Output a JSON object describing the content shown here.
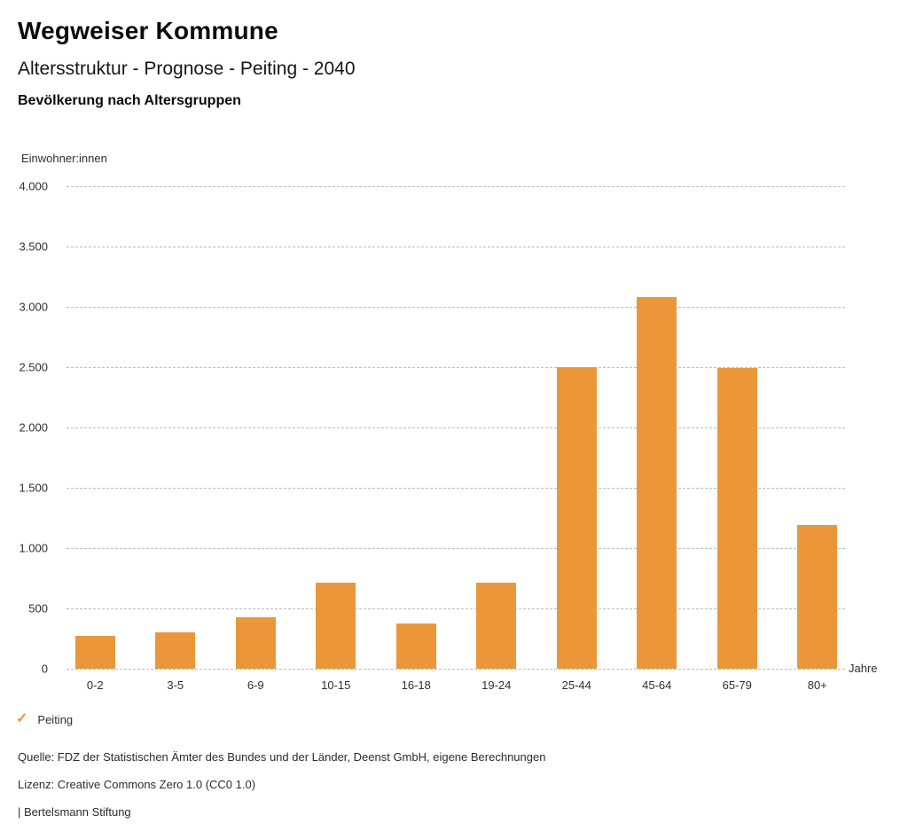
{
  "header": {
    "title": "Wegweiser Kommune",
    "subtitle": "Altersstruktur - Prognose - Peiting - 2040",
    "section_title": "Bevölkerung nach Altersgruppen"
  },
  "chart_data": {
    "type": "bar",
    "title": "Bevölkerung nach Altersgruppen",
    "ylabel": "Einwohner:innen",
    "xlabel": "Jahre",
    "categories": [
      "0-2",
      "3-5",
      "6-9",
      "10-15",
      "16-18",
      "19-24",
      "25-44",
      "45-64",
      "65-79",
      "80+"
    ],
    "series": [
      {
        "name": "Peiting",
        "values": [
          275,
          300,
          430,
          710,
          375,
          710,
          2500,
          3080,
          2490,
          1190
        ]
      }
    ],
    "ylim": [
      0,
      4000
    ],
    "yticks": [
      {
        "value": 4000,
        "label": "4.000"
      },
      {
        "value": 3500,
        "label": "3.500"
      },
      {
        "value": 3000,
        "label": "3.000"
      },
      {
        "value": 2500,
        "label": "2.500"
      },
      {
        "value": 2000,
        "label": "2.000"
      },
      {
        "value": 1500,
        "label": "1.500"
      },
      {
        "value": 1000,
        "label": "1.000"
      },
      {
        "value": 500,
        "label": "500"
      },
      {
        "value": 0,
        "label": "0"
      }
    ],
    "grid": "horizontal-dashed",
    "legend_position": "bottom-left",
    "bar_color": "#EB9739"
  },
  "legend": {
    "check_icon": "✓",
    "check_color": "#EB9739",
    "label": "Peiting"
  },
  "footer": {
    "source": "Quelle: FDZ der Statistischen Ämter des Bundes und der Länder, Deenst GmbH, eigene Berechnungen",
    "license": "Lizenz: Creative Commons Zero 1.0 (CC0 1.0)",
    "attribution": "| Bertelsmann Stiftung"
  }
}
